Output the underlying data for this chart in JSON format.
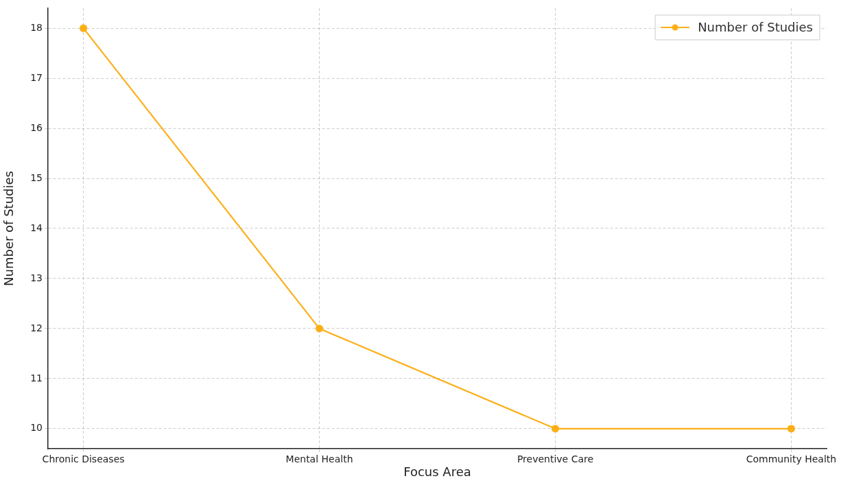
{
  "chart_data": {
    "type": "line",
    "categories": [
      "Chronic Diseases",
      "Mental Health",
      "Preventive Care",
      "Community Health"
    ],
    "series": [
      {
        "name": "Number of Studies",
        "color": "#fcaf17",
        "values": [
          18,
          12,
          10,
          10
        ]
      }
    ],
    "xlabel": "Focus Area",
    "ylabel": "Number of Studies",
    "ylim": [
      9.6,
      18.4
    ],
    "yticks": [
      10,
      11,
      12,
      13,
      14,
      15,
      16,
      17,
      18
    ],
    "grid": true,
    "legend": "top right",
    "marker": "circle",
    "line_style": "solid"
  }
}
